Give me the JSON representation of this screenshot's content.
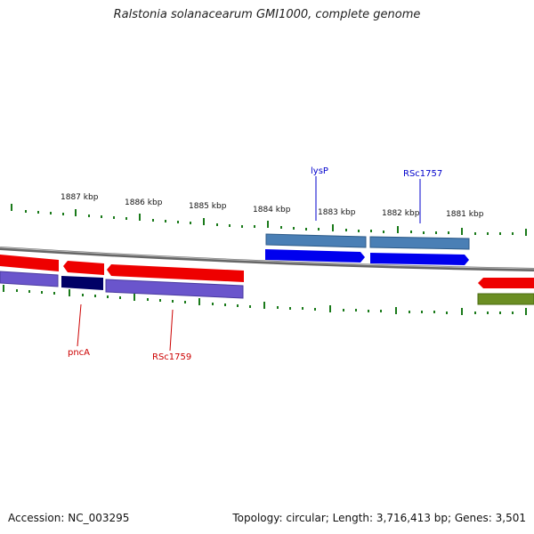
{
  "title": "Ralstonia solanacearum GMI1000, complete genome",
  "footer": {
    "accession": "Accession: NC_003295",
    "summary": "Topology: circular; Length: 3,716,413 bp; Genes: 3,501"
  },
  "ruler": {
    "ticks": [
      {
        "label": "1887 kbp"
      },
      {
        "label": "1886 kbp"
      },
      {
        "label": "1885 kbp"
      },
      {
        "label": "1884 kbp"
      },
      {
        "label": "1883 kbp"
      },
      {
        "label": "1882 kbp"
      },
      {
        "label": "1881 kbp"
      }
    ],
    "color": "#1a7a1a"
  },
  "genes": {
    "pncA": {
      "label": "pncA",
      "color": "#cc0000"
    },
    "RSc1759": {
      "label": "RSc1759",
      "color": "#cc0000"
    },
    "lysP": {
      "label": "lysP",
      "color": "#0000cc"
    },
    "RSc1757": {
      "label": "RSc1757",
      "color": "#0000cc"
    }
  },
  "colors": {
    "forward_feature": "#0000ee",
    "forward_feature_light": "#4a7fb5",
    "reverse_feature": "#ee0000",
    "reverse_feature_light": "#6a55cc",
    "reverse_feature_dark": "#000066",
    "other_feature": "#6b8e23",
    "backbone": "#888888"
  }
}
